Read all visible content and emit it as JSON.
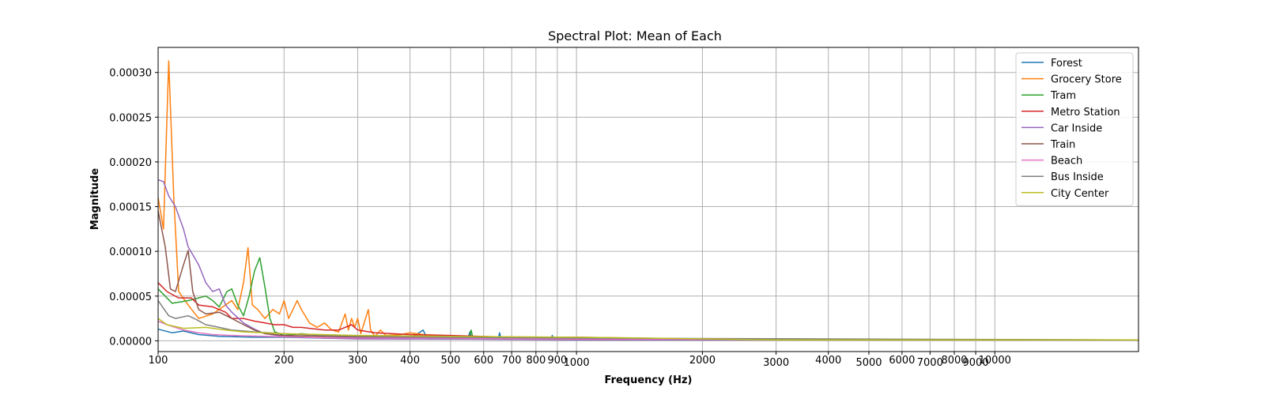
{
  "chart_data": {
    "type": "line",
    "title": "Spectral Plot: Mean of Each",
    "xlabel": "Frequency (Hz)",
    "ylabel": "Magnitude",
    "x_scale": "log",
    "xlim": [
      100,
      22050
    ],
    "ylim": [
      -1.2e-05,
      0.000328
    ],
    "x_ticks": [
      {
        "value": 100,
        "label": "100"
      },
      {
        "value": 200,
        "label": "200"
      },
      {
        "value": 300,
        "label": "300"
      },
      {
        "value": 400,
        "label": "400"
      },
      {
        "value": 500,
        "label": "500"
      },
      {
        "value": 600,
        "label": "600"
      },
      {
        "value": 700,
        "label": "700"
      },
      {
        "value": 800,
        "label": "800"
      },
      {
        "value": 900,
        "label": "900"
      },
      {
        "value": 1000,
        "label": "1000"
      },
      {
        "value": 2000,
        "label": "2000"
      },
      {
        "value": 3000,
        "label": "3000"
      },
      {
        "value": 4000,
        "label": "4000"
      },
      {
        "value": 5000,
        "label": "5000"
      },
      {
        "value": 6000,
        "label": "6000"
      },
      {
        "value": 7000,
        "label": "7000"
      },
      {
        "value": 8000,
        "label": "8000"
      },
      {
        "value": 9000,
        "label": "9000"
      },
      {
        "value": 10000,
        "label": "10000"
      }
    ],
    "y_ticks": [
      {
        "value": 0.0,
        "label": "0.00000"
      },
      {
        "value": 5e-05,
        "label": "0.00005"
      },
      {
        "value": 0.0001,
        "label": "0.00010"
      },
      {
        "value": 0.00015,
        "label": "0.00015"
      },
      {
        "value": 0.0002,
        "label": "0.00020"
      },
      {
        "value": 0.00025,
        "label": "0.00025"
      },
      {
        "value": 0.0003,
        "label": "0.00030"
      }
    ],
    "grid": true,
    "legend_position": "top-right",
    "series": [
      {
        "name": "Forest",
        "color": "#1f77b4",
        "points": [
          [
            100,
            1.3e-05
          ],
          [
            108,
            9e-06
          ],
          [
            115,
            1.1e-05
          ],
          [
            125,
            7e-06
          ],
          [
            140,
            5e-06
          ],
          [
            170,
            4e-06
          ],
          [
            200,
            4e-06
          ],
          [
            250,
            3e-06
          ],
          [
            300,
            3e-06
          ],
          [
            400,
            2e-06
          ],
          [
            430,
            1.2e-05
          ],
          [
            440,
            2e-06
          ],
          [
            550,
            2e-06
          ],
          [
            556,
            1e-05
          ],
          [
            562,
            2e-06
          ],
          [
            650,
            2e-06
          ],
          [
            655,
            9e-06
          ],
          [
            660,
            2e-06
          ],
          [
            800,
            2e-06
          ],
          [
            870,
            2e-06
          ],
          [
            875,
            6e-06
          ],
          [
            880,
            2e-06
          ],
          [
            1100,
            2e-06
          ],
          [
            2000,
            1e-06
          ],
          [
            5000,
            1e-06
          ],
          [
            22050,
            1e-06
          ]
        ]
      },
      {
        "name": "Grocery Store",
        "color": "#ff7f0e",
        "points": [
          [
            100,
            0.00016
          ],
          [
            103,
            0.000125
          ],
          [
            106,
            0.000313
          ],
          [
            109,
            0.00016
          ],
          [
            112,
            5.5e-05
          ],
          [
            118,
            4e-05
          ],
          [
            125,
            2.5e-05
          ],
          [
            135,
            3e-05
          ],
          [
            150,
            4.5e-05
          ],
          [
            155,
            3.5e-05
          ],
          [
            160,
            6.5e-05
          ],
          [
            164,
            0.000104
          ],
          [
            168,
            4e-05
          ],
          [
            173,
            3.5e-05
          ],
          [
            180,
            2.5e-05
          ],
          [
            188,
            3.5e-05
          ],
          [
            195,
            3e-05
          ],
          [
            200,
            4.5e-05
          ],
          [
            205,
            2.5e-05
          ],
          [
            210,
            3.5e-05
          ],
          [
            215,
            4.5e-05
          ],
          [
            220,
            3.5e-05
          ],
          [
            230,
            2e-05
          ],
          [
            240,
            1.5e-05
          ],
          [
            250,
            2e-05
          ],
          [
            260,
            1.2e-05
          ],
          [
            270,
            1e-05
          ],
          [
            280,
            3e-05
          ],
          [
            285,
            1.2e-05
          ],
          [
            290,
            2.5e-05
          ],
          [
            295,
            1.5e-05
          ],
          [
            300,
            2.5e-05
          ],
          [
            305,
            8e-06
          ],
          [
            318,
            3.5e-05
          ],
          [
            322,
            1.2e-05
          ],
          [
            330,
            5e-06
          ],
          [
            340,
            1.2e-05
          ],
          [
            350,
            6e-06
          ],
          [
            380,
            7e-06
          ],
          [
            400,
            9e-06
          ],
          [
            430,
            7e-06
          ],
          [
            480,
            6e-06
          ],
          [
            550,
            5e-06
          ],
          [
            700,
            4e-06
          ],
          [
            1000,
            3e-06
          ],
          [
            2000,
            2e-06
          ],
          [
            5000,
            1e-06
          ],
          [
            22050,
            1e-06
          ]
        ]
      },
      {
        "name": "Tram",
        "color": "#2ca02c",
        "points": [
          [
            100,
            5.8e-05
          ],
          [
            108,
            4.2e-05
          ],
          [
            118,
            4.5e-05
          ],
          [
            125,
            4.8e-05
          ],
          [
            130,
            5e-05
          ],
          [
            135,
            4.5e-05
          ],
          [
            140,
            3.8e-05
          ],
          [
            146,
            5.5e-05
          ],
          [
            150,
            5.8e-05
          ],
          [
            155,
            4e-05
          ],
          [
            160,
            2.8e-05
          ],
          [
            165,
            5e-05
          ],
          [
            170,
            7.8e-05
          ],
          [
            175,
            9.3e-05
          ],
          [
            180,
            6e-05
          ],
          [
            185,
            2.5e-05
          ],
          [
            190,
            1e-05
          ],
          [
            200,
            6e-06
          ],
          [
            220,
            8e-06
          ],
          [
            250,
            5e-06
          ],
          [
            300,
            5e-06
          ],
          [
            400,
            4e-06
          ],
          [
            555,
            4e-06
          ],
          [
            560,
            1.2e-05
          ],
          [
            565,
            4e-06
          ],
          [
            700,
            4e-06
          ],
          [
            1000,
            3e-06
          ],
          [
            2000,
            2e-06
          ],
          [
            5000,
            1e-06
          ],
          [
            22050,
            1e-06
          ]
        ]
      },
      {
        "name": "Metro Station",
        "color": "#d62728",
        "points": [
          [
            100,
            6.5e-05
          ],
          [
            105,
            5.5e-05
          ],
          [
            112,
            4.8e-05
          ],
          [
            120,
            4.8e-05
          ],
          [
            125,
            4e-05
          ],
          [
            135,
            3.8e-05
          ],
          [
            145,
            3.2e-05
          ],
          [
            150,
            2.5e-05
          ],
          [
            160,
            2.5e-05
          ],
          [
            170,
            2.2e-05
          ],
          [
            180,
            2e-05
          ],
          [
            190,
            1.8e-05
          ],
          [
            200,
            1.8e-05
          ],
          [
            210,
            1.5e-05
          ],
          [
            220,
            1.5e-05
          ],
          [
            230,
            1.4e-05
          ],
          [
            250,
            1.2e-05
          ],
          [
            270,
            1.2e-05
          ],
          [
            290,
            1.8e-05
          ],
          [
            300,
            1.2e-05
          ],
          [
            330,
            9e-06
          ],
          [
            400,
            7e-06
          ],
          [
            500,
            6e-06
          ],
          [
            700,
            4e-06
          ],
          [
            1000,
            4e-06
          ],
          [
            2000,
            2e-06
          ],
          [
            5000,
            1e-06
          ],
          [
            22050,
            1e-06
          ]
        ]
      },
      {
        "name": "Car Inside",
        "color": "#9467bd",
        "points": [
          [
            100,
            0.00018
          ],
          [
            103,
            0.000178
          ],
          [
            106,
            0.000162
          ],
          [
            110,
            0.00015
          ],
          [
            115,
            0.000125
          ],
          [
            118,
            0.000105
          ],
          [
            125,
            8.5e-05
          ],
          [
            130,
            6.5e-05
          ],
          [
            135,
            5.5e-05
          ],
          [
            140,
            5.8e-05
          ],
          [
            145,
            4e-05
          ],
          [
            150,
            3.2e-05
          ],
          [
            160,
            2e-05
          ],
          [
            170,
            1.3e-05
          ],
          [
            180,
            8e-06
          ],
          [
            200,
            5e-06
          ],
          [
            250,
            3e-06
          ],
          [
            300,
            2e-06
          ],
          [
            500,
            2e-06
          ],
          [
            1000,
            1e-06
          ],
          [
            22050,
            1e-06
          ]
        ]
      },
      {
        "name": "Train",
        "color": "#8c564b",
        "points": [
          [
            100,
            0.000145
          ],
          [
            104,
            0.000105
          ],
          [
            107,
            5.8e-05
          ],
          [
            110,
            5.5e-05
          ],
          [
            115,
            8.5e-05
          ],
          [
            118,
            0.000101
          ],
          [
            121,
            5.5e-05
          ],
          [
            125,
            3.5e-05
          ],
          [
            130,
            3e-05
          ],
          [
            140,
            3.2e-05
          ],
          [
            150,
            2.5e-05
          ],
          [
            160,
            1.8e-05
          ],
          [
            170,
            1.2e-05
          ],
          [
            180,
            8e-06
          ],
          [
            200,
            6e-06
          ],
          [
            250,
            5e-06
          ],
          [
            300,
            4e-06
          ],
          [
            500,
            3e-06
          ],
          [
            1000,
            2e-06
          ],
          [
            22050,
            1e-06
          ]
        ]
      },
      {
        "name": "Beach",
        "color": "#e377c2",
        "points": [
          [
            100,
            2.2e-05
          ],
          [
            105,
            1.8e-05
          ],
          [
            115,
            1.2e-05
          ],
          [
            125,
            9e-06
          ],
          [
            135,
            7e-06
          ],
          [
            150,
            6e-06
          ],
          [
            180,
            5e-06
          ],
          [
            220,
            4e-06
          ],
          [
            300,
            3e-06
          ],
          [
            500,
            3e-06
          ],
          [
            1000,
            2e-06
          ],
          [
            22050,
            1e-06
          ]
        ]
      },
      {
        "name": "Bus Inside",
        "color": "#7f7f7f",
        "points": [
          [
            100,
            4.5e-05
          ],
          [
            106,
            2.8e-05
          ],
          [
            110,
            2.5e-05
          ],
          [
            118,
            2.8e-05
          ],
          [
            122,
            2.5e-05
          ],
          [
            130,
            1.8e-05
          ],
          [
            140,
            1.5e-05
          ],
          [
            150,
            1.2e-05
          ],
          [
            170,
            1e-05
          ],
          [
            200,
            8e-06
          ],
          [
            250,
            6e-06
          ],
          [
            300,
            5e-06
          ],
          [
            500,
            4e-06
          ],
          [
            1000,
            3e-06
          ],
          [
            22050,
            1e-06
          ]
        ]
      },
      {
        "name": "City Center",
        "color": "#bcbd22",
        "points": [
          [
            100,
            2.5e-05
          ],
          [
            105,
            1.8e-05
          ],
          [
            115,
            1.4e-05
          ],
          [
            130,
            1.5e-05
          ],
          [
            145,
            1.2e-05
          ],
          [
            160,
            1e-05
          ],
          [
            200,
            8e-06
          ],
          [
            300,
            6e-06
          ],
          [
            500,
            5e-06
          ],
          [
            1000,
            4e-06
          ],
          [
            1500,
            3e-06
          ],
          [
            3000,
            1e-06
          ],
          [
            22050,
            1e-06
          ]
        ]
      }
    ]
  }
}
